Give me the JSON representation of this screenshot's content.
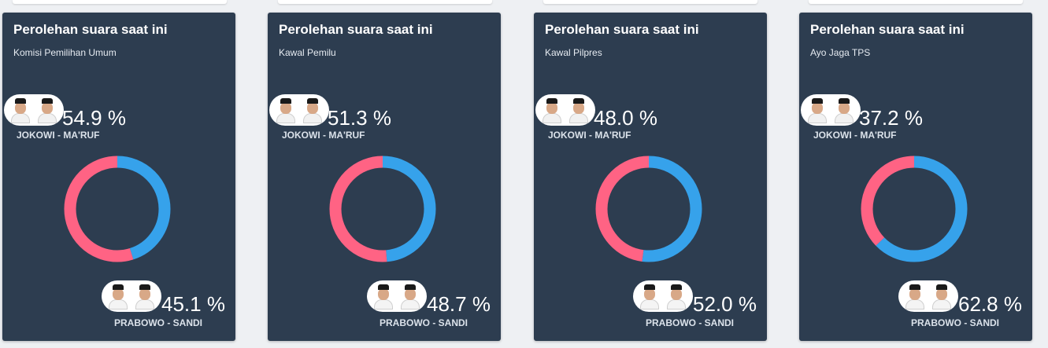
{
  "cards": [
    {
      "title": "Perolehan suara saat ini",
      "source": "Komisi Pemilihan Umum",
      "candidates": [
        {
          "name": "JOKOWI - MA'RUF",
          "percent": "54.9 %",
          "share": 54.9
        },
        {
          "name": "PRABOWO - SANDI",
          "percent": "45.1 %",
          "share": 45.1
        }
      ]
    },
    {
      "title": "Perolehan suara saat ini",
      "source": "Kawal Pemilu",
      "candidates": [
        {
          "name": "JOKOWI - MA'RUF",
          "percent": "51.3 %",
          "share": 51.3
        },
        {
          "name": "PRABOWO - SANDI",
          "percent": "48.7 %",
          "share": 48.7
        }
      ]
    },
    {
      "title": "Perolehan suara saat ini",
      "source": "Kawal Pilpres",
      "candidates": [
        {
          "name": "JOKOWI - MA'RUF",
          "percent": "48.0 %",
          "share": 48.0
        },
        {
          "name": "PRABOWO - SANDI",
          "percent": "52.0 %",
          "share": 52.0
        }
      ]
    },
    {
      "title": "Perolehan suara saat ini",
      "source": "Ayo Jaga TPS",
      "candidates": [
        {
          "name": "JOKOWI - MA'RUF",
          "percent": "37.2 %",
          "share": 37.2
        },
        {
          "name": "PRABOWO - SANDI",
          "percent": "62.8 %",
          "share": 62.8
        }
      ]
    }
  ],
  "colors": {
    "card_bg": "#2d3d50",
    "candidate1_arc": "#ff6384",
    "candidate2_arc": "#36a2eb"
  },
  "icons": {
    "candidate1_avatar": "jokowi-maruf-photo",
    "candidate2_avatar": "prabowo-sandi-photo"
  }
}
